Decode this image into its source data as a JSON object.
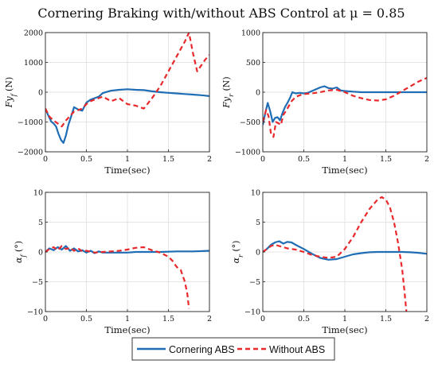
{
  "title": "Cornering Braking with/without ABS Control at μ = 0.85",
  "legend": {
    "position": "bottom-center",
    "entries": [
      {
        "label": "Cornering ABS",
        "color": "#1f6db5",
        "style": "solid"
      },
      {
        "label": "Without ABS",
        "color": "#e8282b",
        "style": "dashed"
      }
    ]
  },
  "chart_data": [
    {
      "type": "line",
      "xlabel": "Time(sec)",
      "ylabel": "Fy_f (N)",
      "xlim": [
        0,
        2
      ],
      "ylim": [
        -2000,
        2000
      ],
      "xticks": [
        0,
        0.5,
        1,
        1.5,
        2
      ],
      "yticks": [
        -2000,
        -1000,
        0,
        1000,
        2000
      ],
      "grid": true,
      "series": [
        {
          "name": "Cornering ABS",
          "color": "#1f6db5",
          "x": [
            0,
            0.03,
            0.07,
            0.1,
            0.13,
            0.16,
            0.19,
            0.22,
            0.25,
            0.28,
            0.31,
            0.35,
            0.4,
            0.45,
            0.5,
            0.55,
            0.6,
            0.65,
            0.7,
            0.8,
            0.9,
            1.0,
            1.1,
            1.2,
            1.3,
            1.4,
            1.5,
            1.6,
            1.7,
            1.8,
            1.9,
            2.0
          ],
          "y": [
            -550,
            -750,
            -980,
            -1050,
            -1150,
            -1400,
            -1600,
            -1700,
            -1450,
            -1100,
            -850,
            -500,
            -580,
            -620,
            -350,
            -250,
            -200,
            -150,
            -30,
            50,
            80,
            100,
            80,
            70,
            30,
            0,
            -20,
            -40,
            -60,
            -80,
            -100,
            -130
          ]
        },
        {
          "name": "Without ABS",
          "color": "#e8282b",
          "x": [
            0,
            0.05,
            0.1,
            0.15,
            0.2,
            0.25,
            0.3,
            0.35,
            0.4,
            0.45,
            0.5,
            0.55,
            0.6,
            0.7,
            0.8,
            0.9,
            1.0,
            1.1,
            1.2,
            1.3,
            1.4,
            1.5,
            1.6,
            1.7,
            1.75,
            1.8,
            1.85,
            1.9,
            1.95,
            2.0
          ],
          "y": [
            -550,
            -820,
            -950,
            -1050,
            -1150,
            -950,
            -800,
            -650,
            -600,
            -550,
            -400,
            -300,
            -250,
            -150,
            -300,
            -200,
            -400,
            -450,
            -550,
            -200,
            200,
            700,
            1200,
            1700,
            2000,
            1300,
            700,
            900,
            1100,
            1250
          ]
        }
      ]
    },
    {
      "type": "line",
      "xlabel": "Time(sec)",
      "ylabel": "Fy_r (N)",
      "xlim": [
        0,
        2
      ],
      "ylim": [
        -1000,
        1000
      ],
      "xticks": [
        0,
        0.5,
        1,
        1.5,
        2
      ],
      "yticks": [
        -1000,
        -500,
        0,
        500,
        1000
      ],
      "grid": true,
      "series": [
        {
          "name": "Cornering ABS",
          "color": "#1f6db5",
          "x": [
            0,
            0.03,
            0.06,
            0.09,
            0.12,
            0.15,
            0.18,
            0.21,
            0.24,
            0.27,
            0.3,
            0.33,
            0.36,
            0.4,
            0.45,
            0.5,
            0.55,
            0.6,
            0.65,
            0.7,
            0.75,
            0.8,
            0.85,
            0.9,
            0.95,
            1.0,
            1.1,
            1.2,
            1.4,
            1.6,
            1.8,
            2.0
          ],
          "y": [
            -550,
            -350,
            -180,
            -320,
            -500,
            -430,
            -420,
            -470,
            -350,
            -250,
            -180,
            -100,
            0,
            -20,
            -10,
            -20,
            -10,
            20,
            50,
            80,
            100,
            70,
            60,
            80,
            30,
            20,
            10,
            0,
            0,
            0,
            0,
            0
          ]
        },
        {
          "name": "Without ABS",
          "color": "#e8282b",
          "x": [
            0,
            0.04,
            0.07,
            0.1,
            0.13,
            0.16,
            0.19,
            0.22,
            0.25,
            0.28,
            0.31,
            0.35,
            0.4,
            0.45,
            0.5,
            0.6,
            0.7,
            0.8,
            0.9,
            1.0,
            1.1,
            1.2,
            1.3,
            1.4,
            1.5,
            1.6,
            1.7,
            1.8,
            1.9,
            2.0
          ],
          "y": [
            -500,
            -300,
            -400,
            -700,
            -750,
            -500,
            -520,
            -550,
            -380,
            -320,
            -250,
            -150,
            -80,
            -50,
            -30,
            -20,
            0,
            30,
            40,
            0,
            -60,
            -100,
            -130,
            -140,
            -120,
            -60,
            20,
            100,
            180,
            240
          ]
        }
      ]
    },
    {
      "type": "line",
      "xlabel": "Time(sec)",
      "ylabel": "α_f (°)",
      "xlim": [
        0,
        2
      ],
      "ylim": [
        -10,
        10
      ],
      "xticks": [
        0,
        0.5,
        1,
        1.5,
        2
      ],
      "yticks": [
        -10,
        -5,
        0,
        5,
        10
      ],
      "grid": true,
      "series": [
        {
          "name": "Cornering ABS",
          "color": "#1f6db5",
          "x": [
            0,
            0.05,
            0.1,
            0.15,
            0.2,
            0.25,
            0.3,
            0.35,
            0.4,
            0.45,
            0.5,
            0.55,
            0.6,
            0.65,
            0.7,
            0.8,
            0.9,
            1.0,
            1.1,
            1.2,
            1.4,
            1.6,
            1.8,
            2.0
          ],
          "y": [
            0,
            0.6,
            0.3,
            0.8,
            0.4,
            1.0,
            0.2,
            0.6,
            0.1,
            0.3,
            -0.1,
            0.2,
            -0.2,
            0.1,
            -0.1,
            -0.1,
            -0.1,
            -0.1,
            0,
            0,
            0,
            0.1,
            0.1,
            0.2
          ]
        },
        {
          "name": "Without ABS",
          "color": "#e8282b",
          "x": [
            0,
            0.05,
            0.1,
            0.15,
            0.2,
            0.25,
            0.3,
            0.35,
            0.4,
            0.45,
            0.5,
            0.6,
            0.7,
            0.8,
            0.9,
            1.0,
            1.1,
            1.2,
            1.3,
            1.4,
            1.5,
            1.55,
            1.6,
            1.65,
            1.7,
            1.73,
            1.75
          ],
          "y": [
            0,
            0.5,
            0.8,
            0.3,
            1.0,
            0.5,
            0.7,
            0.2,
            0.6,
            0.1,
            0.2,
            -0.1,
            0,
            0.1,
            0.2,
            0.4,
            0.7,
            0.8,
            0.3,
            -0.1,
            -0.8,
            -1.5,
            -2.5,
            -3.0,
            -5.0,
            -7.0,
            -9.5
          ]
        }
      ]
    },
    {
      "type": "line",
      "xlabel": "Time(sec)",
      "ylabel": "α_r (°)",
      "xlim": [
        0,
        2
      ],
      "ylim": [
        -10,
        10
      ],
      "xticks": [
        0,
        0.5,
        1,
        1.5,
        2
      ],
      "yticks": [
        -10,
        -5,
        0,
        5,
        10
      ],
      "grid": true,
      "series": [
        {
          "name": "Cornering ABS",
          "color": "#1f6db5",
          "x": [
            0,
            0.05,
            0.1,
            0.15,
            0.2,
            0.25,
            0.3,
            0.35,
            0.4,
            0.5,
            0.6,
            0.7,
            0.8,
            0.9,
            1.0,
            1.1,
            1.2,
            1.3,
            1.4,
            1.5,
            1.6,
            1.7,
            1.8,
            1.9,
            2.0
          ],
          "y": [
            0,
            0.5,
            1.2,
            1.6,
            1.8,
            1.4,
            1.7,
            1.6,
            1.2,
            0.5,
            -0.3,
            -1.0,
            -1.3,
            -1.2,
            -0.8,
            -0.4,
            -0.2,
            -0.05,
            0,
            0,
            0,
            0,
            -0.05,
            -0.15,
            -0.3
          ]
        },
        {
          "name": "Without ABS",
          "color": "#e8282b",
          "x": [
            0,
            0.05,
            0.1,
            0.15,
            0.2,
            0.25,
            0.3,
            0.4,
            0.5,
            0.6,
            0.7,
            0.8,
            0.9,
            1.0,
            1.1,
            1.2,
            1.3,
            1.4,
            1.45,
            1.5,
            1.55,
            1.6,
            1.65,
            1.7,
            1.73,
            1.75
          ],
          "y": [
            0,
            0.5,
            1.0,
            1.2,
            1.0,
            0.8,
            0.6,
            0.4,
            0,
            -0.5,
            -0.8,
            -1.0,
            -0.8,
            0.5,
            2.5,
            5.0,
            7.2,
            8.8,
            9.2,
            8.8,
            7.5,
            5.0,
            1.5,
            -3.0,
            -7.0,
            -10.0
          ]
        }
      ]
    }
  ]
}
